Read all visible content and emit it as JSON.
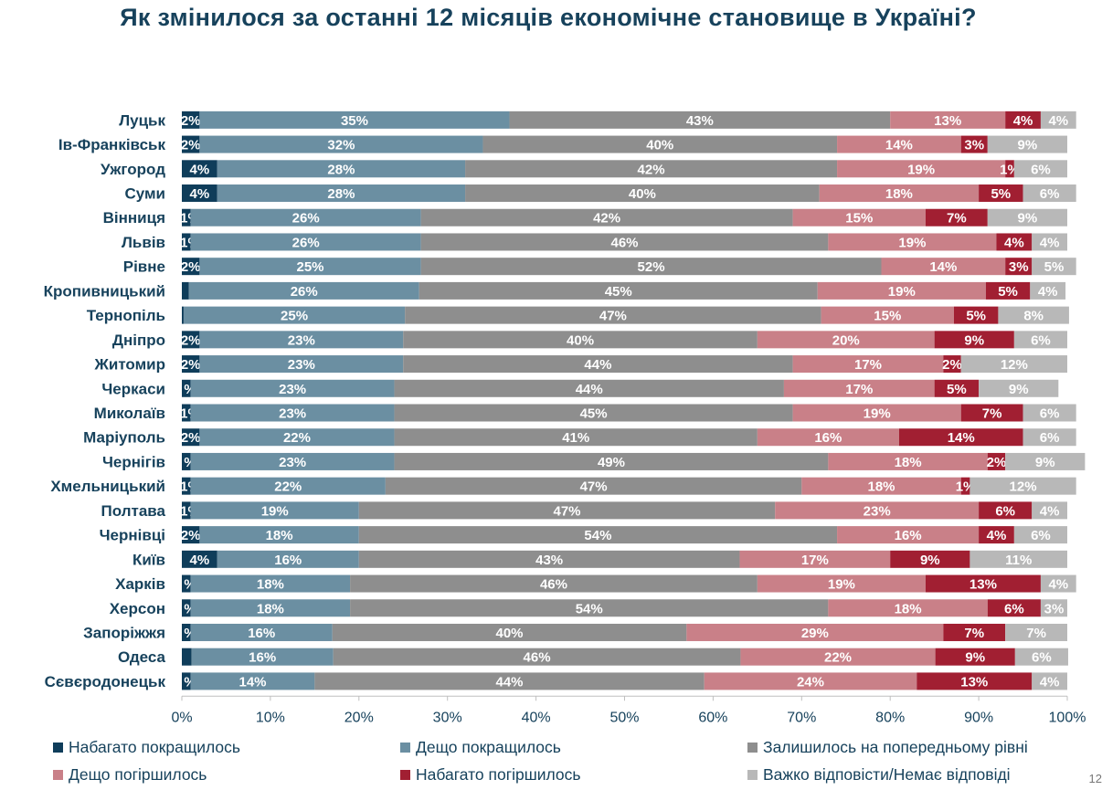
{
  "title": "Як змінилося за останні 12 місяців економічне становище в Україні?",
  "page_number": "12",
  "chart_data": {
    "type": "bar",
    "orientation": "horizontal",
    "stacked": true,
    "title": "Як змінилося за останні 12 місяців економічне становище в Україні?",
    "xlim": [
      0,
      100
    ],
    "x_ticks": [
      "0%",
      "10%",
      "20%",
      "30%",
      "40%",
      "50%",
      "60%",
      "70%",
      "80%",
      "90%",
      "100%"
    ],
    "legend_position": "bottom",
    "categories": [
      "Луцьк",
      "Ів-Франківськ",
      "Ужгород",
      "Суми",
      "Вінниця",
      "Львів",
      "Рівне",
      "Кропивницький",
      "Тернопіль",
      "Дніпро",
      "Житомир",
      "Черкаси",
      "Миколаїв",
      "Маріуполь",
      "Чернігів",
      "Хмельницький",
      "Полтава",
      "Чернівці",
      "Київ",
      "Харків",
      "Херсон",
      "Запоріжжя",
      "Одеса",
      "Сєвєродонецьк"
    ],
    "series": [
      {
        "name": "Набагато покращилось",
        "color": "#0f3d5a",
        "values": [
          2,
          2,
          4,
          4,
          1,
          1,
          2,
          0.8,
          0.2,
          2,
          2,
          1,
          1,
          2,
          1,
          1,
          1,
          2,
          4,
          1,
          1,
          1,
          1.1,
          1
        ]
      },
      {
        "name": "Дещо покращилось",
        "color": "#6b8fa2",
        "values": [
          35,
          32,
          28,
          28,
          26,
          26,
          25,
          26,
          25,
          23,
          23,
          23,
          23,
          22,
          23,
          22,
          19,
          18,
          16,
          18,
          18,
          16,
          16,
          14
        ]
      },
      {
        "name": "Залишилось на попередньому рівні",
        "color": "#8e8e8e",
        "values": [
          43,
          40,
          42,
          40,
          42,
          46,
          52,
          45,
          47,
          40,
          44,
          44,
          45,
          41,
          49,
          47,
          47,
          54,
          43,
          46,
          54,
          40,
          46,
          44
        ]
      },
      {
        "name": "Дещо погіршилось",
        "color": "#c98088",
        "values": [
          13,
          14,
          19,
          18,
          15,
          19,
          14,
          19,
          15,
          20,
          17,
          17,
          19,
          16,
          18,
          18,
          23,
          16,
          17,
          19,
          18,
          29,
          22,
          24
        ]
      },
      {
        "name": "Набагато погіршилось",
        "color": "#a11f32",
        "values": [
          4,
          3,
          1,
          5,
          7,
          4,
          3,
          5,
          5,
          9,
          2,
          5,
          7,
          14,
          2,
          1,
          6,
          4,
          9,
          13,
          6,
          7,
          9,
          13
        ]
      },
      {
        "name": "Важко відповісти/Немає відповіді",
        "color": "#b8b8b8",
        "values": [
          4,
          9,
          6,
          6,
          9,
          4,
          5,
          4,
          8,
          6,
          12,
          9,
          6,
          6,
          9,
          12,
          4,
          6,
          11,
          4,
          3,
          7,
          6,
          4
        ]
      }
    ],
    "labels": [
      [
        "2%",
        "35%",
        "43%",
        "13%",
        "4%",
        "4%"
      ],
      [
        "2%",
        "32%",
        "40%",
        "14%",
        "3%",
        "9%"
      ],
      [
        "4%",
        "28%",
        "42%",
        "19%",
        "1%",
        "6%"
      ],
      [
        "4%",
        "28%",
        "40%",
        "18%",
        "5%",
        "6%"
      ],
      [
        "1%",
        "26%",
        "42%",
        "15%",
        "7%",
        "9%"
      ],
      [
        "1%",
        "26%",
        "46%",
        "19%",
        "4%",
        "4%"
      ],
      [
        "2%",
        "25%",
        "52%",
        "14%",
        "3%",
        "5%"
      ],
      [
        "",
        "26%",
        "45%",
        "19%",
        "5%",
        "4%"
      ],
      [
        "",
        "25%",
        "47%",
        "15%",
        "5%",
        "8%"
      ],
      [
        "2%",
        "23%",
        "40%",
        "20%",
        "9%",
        "6%"
      ],
      [
        "2%",
        "23%",
        "44%",
        "17%",
        "2%",
        "12%"
      ],
      [
        "%",
        "23%",
        "44%",
        "17%",
        "5%",
        "9%"
      ],
      [
        "1%",
        "23%",
        "45%",
        "19%",
        "7%",
        "6%"
      ],
      [
        "2%",
        "22%",
        "41%",
        "16%",
        "14%",
        "6%"
      ],
      [
        "%",
        "23%",
        "49%",
        "18%",
        "2%",
        "9%"
      ],
      [
        "1%",
        "22%",
        "47%",
        "18%",
        "1%",
        "12%"
      ],
      [
        "1%",
        "19%",
        "47%",
        "23%",
        "6%",
        "4%"
      ],
      [
        "2%",
        "18%",
        "54%",
        "16%",
        "4%",
        "6%"
      ],
      [
        "4%",
        "16%",
        "43%",
        "17%",
        "9%",
        "11%"
      ],
      [
        "%",
        "18%",
        "46%",
        "19%",
        "13%",
        "4%"
      ],
      [
        "%",
        "18%",
        "54%",
        "18%",
        "6%",
        "3%"
      ],
      [
        "%",
        "16%",
        "40%",
        "29%",
        "7%",
        "7%"
      ],
      [
        "",
        "16%",
        "46%",
        "22%",
        "9%",
        "6%"
      ],
      [
        "%",
        "14%",
        "44%",
        "24%",
        "13%",
        "4%"
      ]
    ]
  },
  "legend": {
    "items": [
      {
        "label": "Набагато покращилось",
        "color": "#0f3d5a"
      },
      {
        "label": "Дещо покращилось",
        "color": "#6b8fa2"
      },
      {
        "label": "Залишилось на попередньому рівні",
        "color": "#8e8e8e"
      },
      {
        "label": "Дещо погіршилось",
        "color": "#c98088"
      },
      {
        "label": "Набагато погіршилось",
        "color": "#a11f32"
      },
      {
        "label": "Важко відповісти/Немає відповіді",
        "color": "#b8b8b8"
      }
    ]
  }
}
